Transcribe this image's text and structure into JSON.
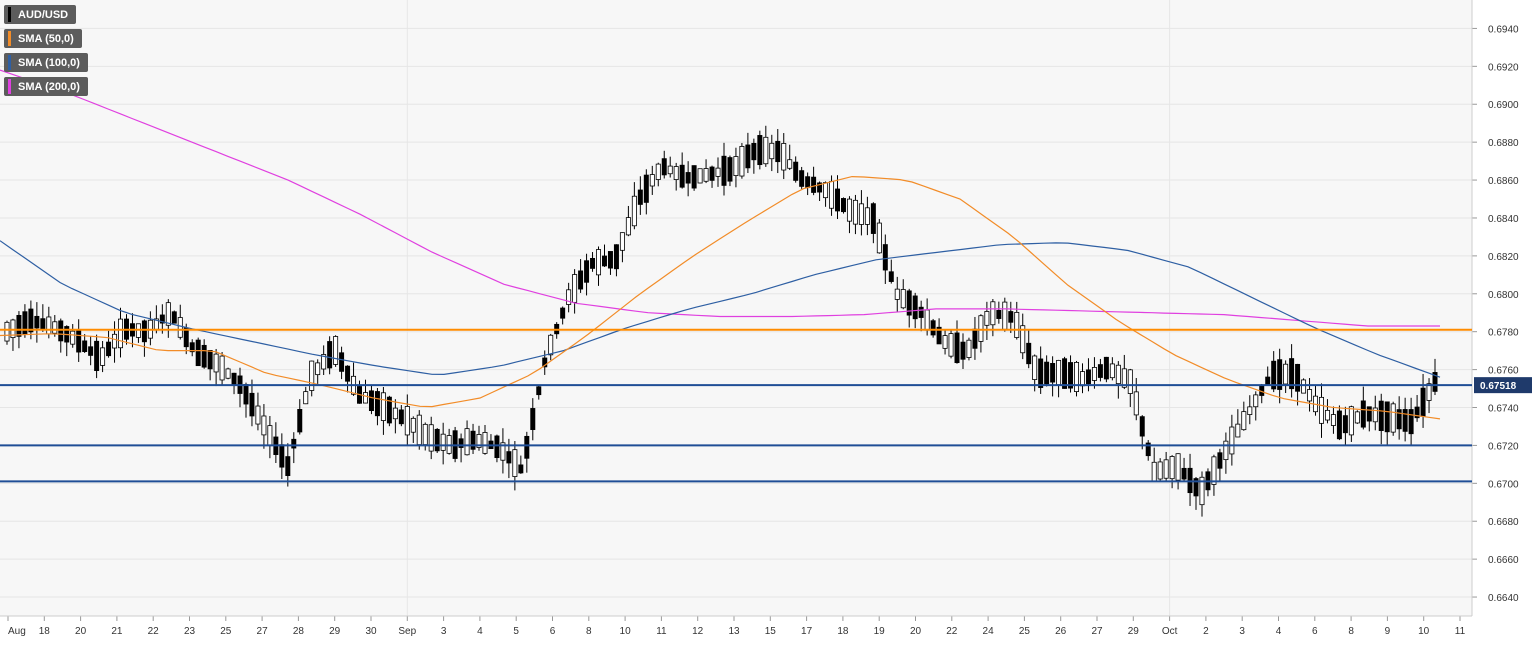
{
  "legend": [
    {
      "label": "AUD/USD",
      "color": "#000000"
    },
    {
      "label": "SMA (50,0)",
      "color": "#f28c28"
    },
    {
      "label": "SMA (100,0)",
      "color": "#2e5fa3"
    },
    {
      "label": "SMA (200,0)",
      "color": "#e040e0"
    }
  ],
  "chart_data": {
    "type": "candlestick",
    "title": "",
    "symbol": "AUD/USD",
    "ylim": [
      0.663,
      0.6955
    ],
    "y_ticks": [
      "0.6640",
      "0.6660",
      "0.6680",
      "0.6700",
      "0.6720",
      "0.6740",
      "0.6760",
      "0.6780",
      "0.6800",
      "0.6820",
      "0.6840",
      "0.6860",
      "0.6880",
      "0.6900",
      "0.6920",
      "0.6940"
    ],
    "x_ticks": [
      "Aug",
      "18",
      "20",
      "21",
      "22",
      "23",
      "25",
      "27",
      "28",
      "29",
      "30",
      "Sep",
      "3",
      "4",
      "5",
      "6",
      "8",
      "10",
      "11",
      "12",
      "13",
      "15",
      "17",
      "18",
      "19",
      "20",
      "22",
      "24",
      "25",
      "26",
      "27",
      "29",
      "Oct",
      "2",
      "3",
      "4",
      "6",
      "8",
      "9",
      "10",
      "11"
    ],
    "current_price": "0.67518",
    "horizontal_levels": [
      {
        "value": 0.6781,
        "color": "#ff8c00"
      },
      {
        "value": 0.67518,
        "color": "#1f4e96"
      },
      {
        "value": 0.672,
        "color": "#1f4e96"
      },
      {
        "value": 0.6701,
        "color": "#1f4e96"
      }
    ],
    "ohlc_keyframes": [
      [
        0.6786,
        0.6774
      ],
      [
        0.6792,
        0.678
      ],
      [
        0.6787,
        0.6778
      ],
      [
        0.6778,
        0.6773
      ],
      [
        0.6773,
        0.6758
      ],
      [
        0.6785,
        0.6778
      ],
      [
        0.6786,
        0.6774
      ],
      [
        0.6799,
        0.6782
      ],
      [
        0.6778,
        0.6762
      ],
      [
        0.6773,
        0.6753
      ],
      [
        0.6758,
        0.6745
      ],
      [
        0.6738,
        0.6722
      ],
      [
        0.671,
        0.6708
      ],
      [
        0.6748,
        0.6765
      ],
      [
        0.6778,
        0.6764
      ],
      [
        0.6752,
        0.6742
      ],
      [
        0.6745,
        0.6737
      ],
      [
        0.674,
        0.6728
      ],
      [
        0.6731,
        0.6718
      ],
      [
        0.6724,
        0.6716
      ],
      [
        0.6726,
        0.672
      ],
      [
        0.6723,
        0.6715
      ],
      [
        0.6698,
        0.6716
      ],
      [
        0.6756,
        0.6775
      ],
      [
        0.6795,
        0.6802
      ],
      [
        0.6822,
        0.681
      ],
      [
        0.6825,
        0.6812
      ],
      [
        0.6858,
        0.6842
      ],
      [
        0.6877,
        0.6858
      ],
      [
        0.6866,
        0.6856
      ],
      [
        0.6868,
        0.6858
      ],
      [
        0.6872,
        0.686
      ],
      [
        0.6884,
        0.6868
      ],
      [
        0.688,
        0.687
      ],
      [
        0.6862,
        0.6858
      ],
      [
        0.6864,
        0.6845
      ],
      [
        0.684,
        0.6848
      ],
      [
        0.6852,
        0.6828
      ],
      [
        0.681,
        0.679
      ],
      [
        0.6792,
        0.679
      ],
      [
        0.6788,
        0.6762
      ],
      [
        0.6766,
        0.6772
      ],
      [
        0.6776,
        0.6804
      ],
      [
        0.6795,
        0.678
      ],
      [
        0.6766,
        0.675
      ],
      [
        0.6755,
        0.6762
      ],
      [
        0.6752,
        0.6758
      ],
      [
        0.6765,
        0.6757
      ],
      [
        0.676,
        0.6747
      ],
      [
        0.67,
        0.6712
      ],
      [
        0.6718,
        0.67
      ],
      [
        0.6685,
        0.6705
      ],
      [
        0.671,
        0.6722
      ],
      [
        0.6725,
        0.6748
      ],
      [
        0.6752,
        0.6762
      ],
      [
        0.6768,
        0.6748
      ],
      [
        0.6742,
        0.6738
      ],
      [
        0.6732,
        0.6728
      ],
      [
        0.6742,
        0.6732
      ],
      [
        0.674,
        0.673
      ],
      [
        0.6725,
        0.674
      ],
      [
        0.6755,
        0.6752
      ]
    ],
    "sma_50_keyframes": [
      0.6778,
      0.6779,
      0.6777,
      0.677,
      0.677,
      0.6758,
      0.6752,
      0.6745,
      0.674,
      0.6745,
      0.6758,
      0.6778,
      0.68,
      0.682,
      0.6838,
      0.6855,
      0.6862,
      0.686,
      0.685,
      0.683,
      0.6805,
      0.6785,
      0.6768,
      0.6755,
      0.6745,
      0.674,
      0.6738,
      0.6734
    ],
    "sma_100_keyframes": [
      0.6828,
      0.6805,
      0.679,
      0.6782,
      0.6775,
      0.6768,
      0.6762,
      0.6757,
      0.6762,
      0.677,
      0.6782,
      0.6792,
      0.68,
      0.681,
      0.6818,
      0.6822,
      0.6826,
      0.6827,
      0.6823,
      0.6814,
      0.6798,
      0.6782,
      0.6768,
      0.6756
    ],
    "sma_200_keyframes": [
      0.6918,
      0.6905,
      0.689,
      0.6875,
      0.686,
      0.6842,
      0.6822,
      0.6805,
      0.6795,
      0.679,
      0.6788,
      0.6788,
      0.6789,
      0.6792,
      0.6792,
      0.6791,
      0.679,
      0.6789,
      0.6786,
      0.6783,
      0.6783
    ],
    "grid": true
  }
}
